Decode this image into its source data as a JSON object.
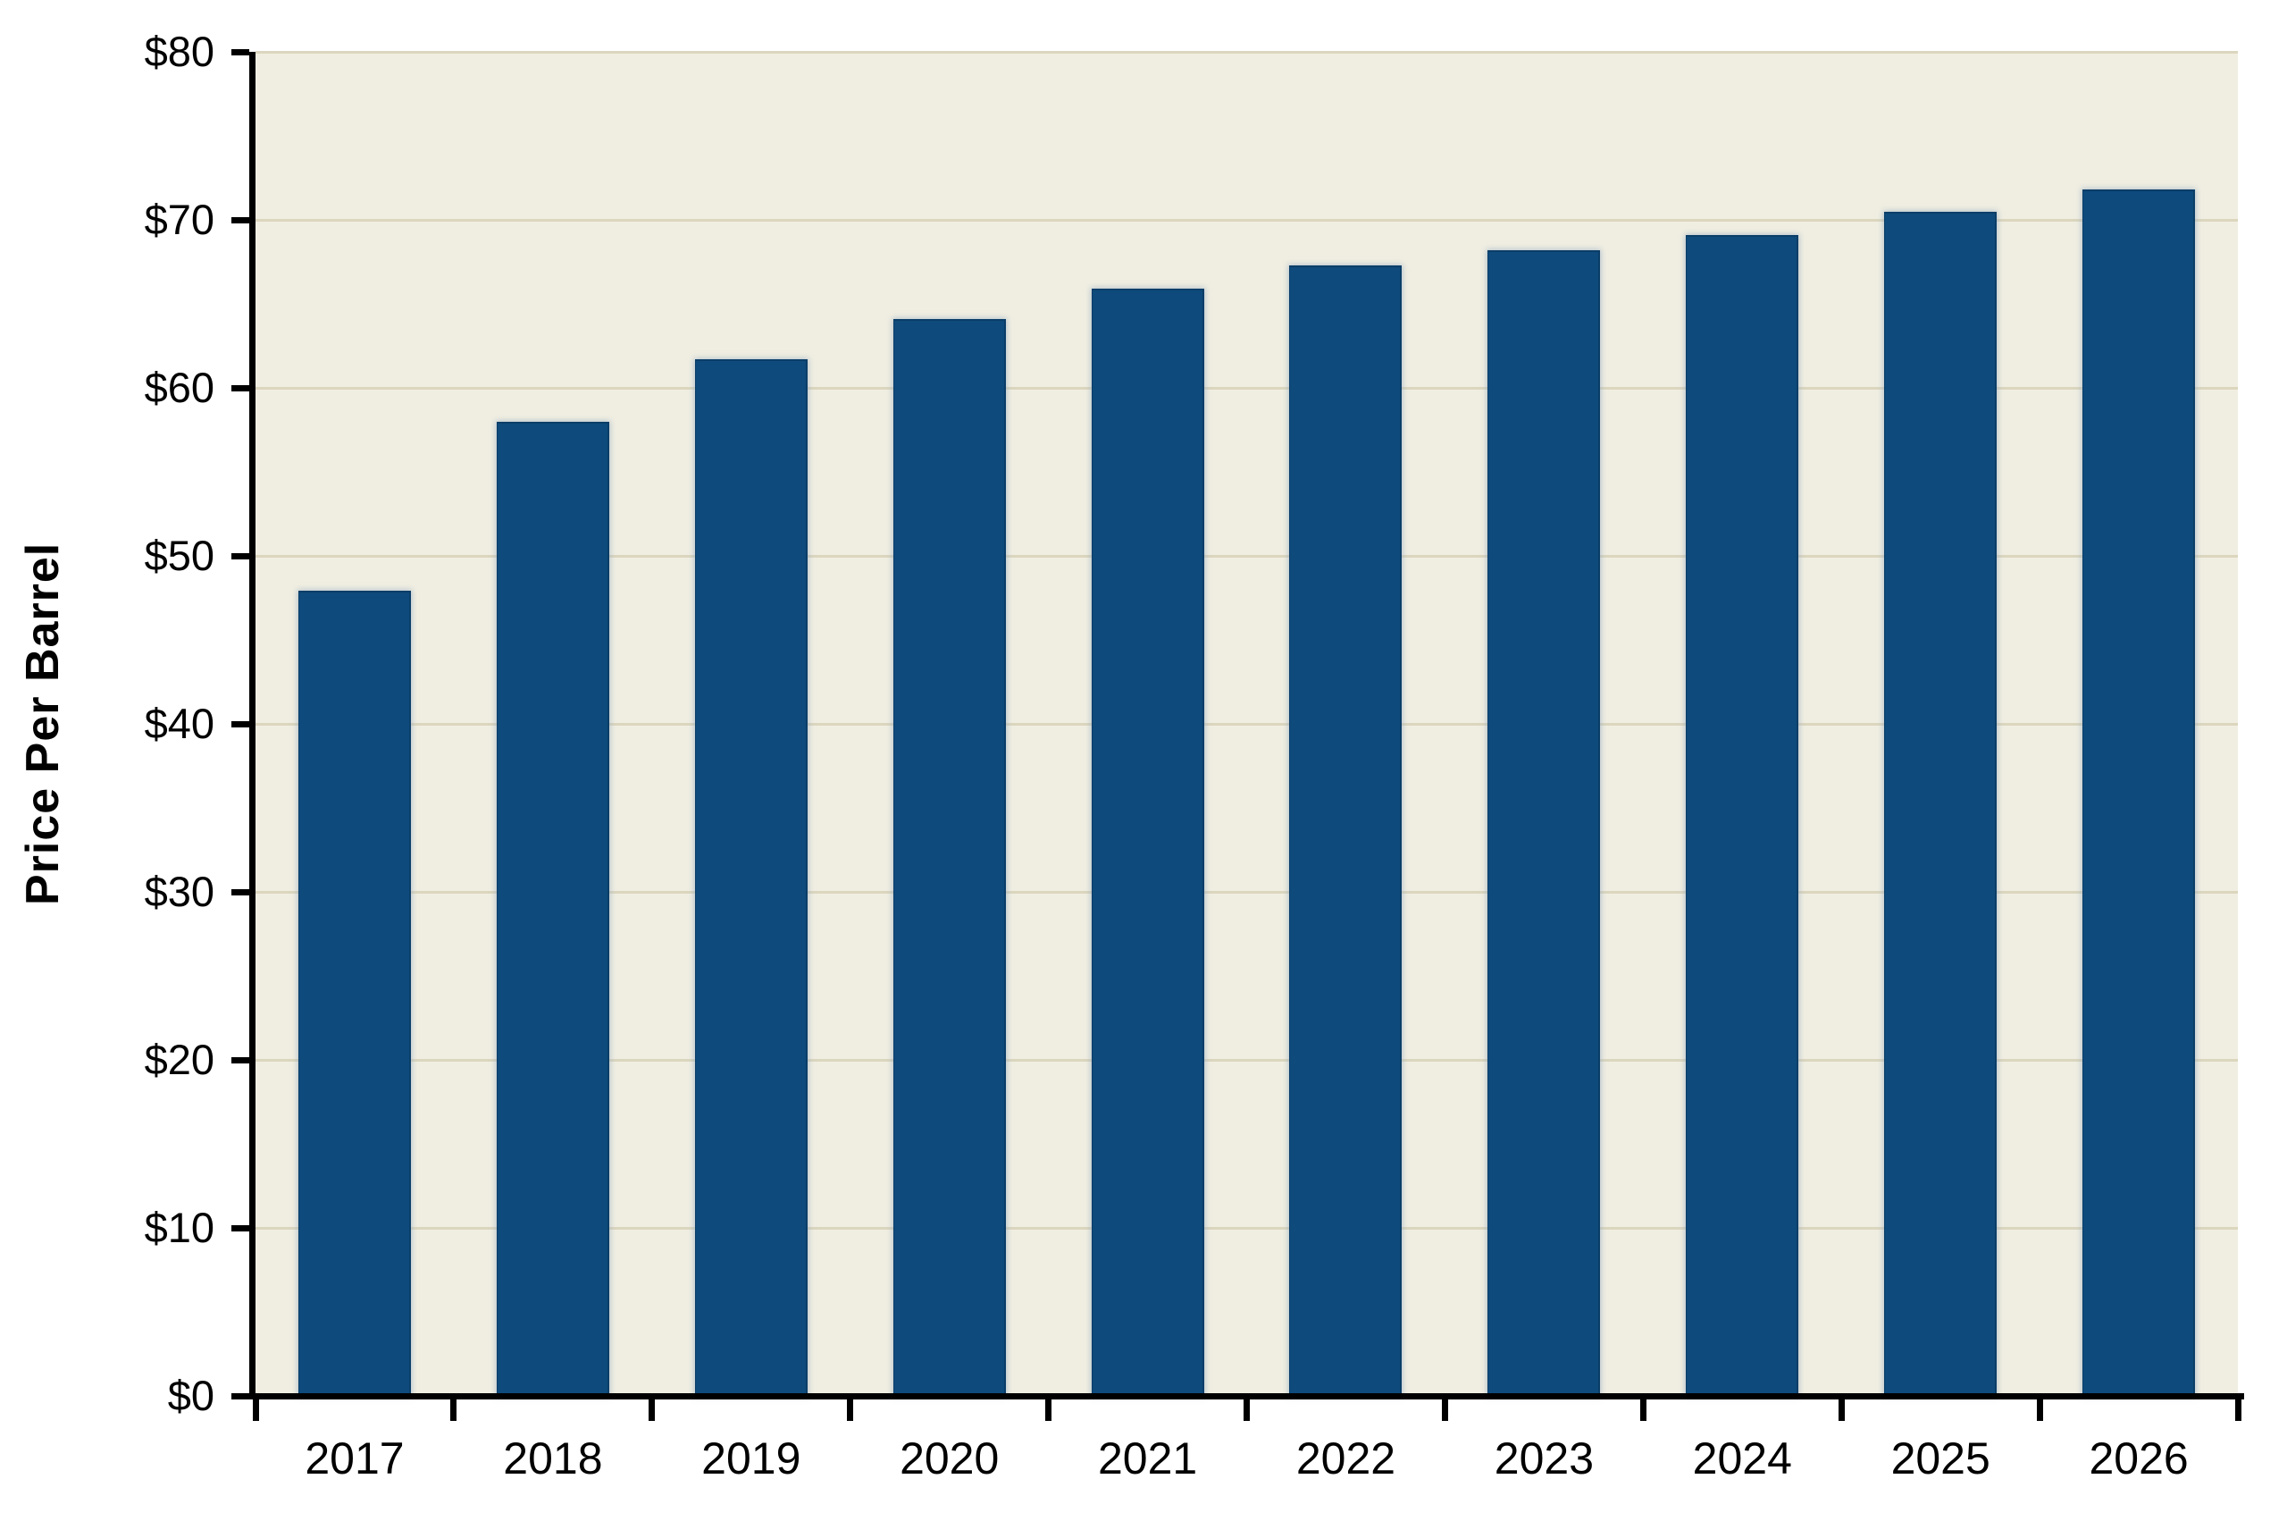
{
  "chart_data": {
    "type": "bar",
    "title": "",
    "categories": [
      "2017",
      "2018",
      "2019",
      "2020",
      "2021",
      "2022",
      "2023",
      "2024",
      "2025",
      "2026"
    ],
    "values": [
      47.9,
      58,
      61.7,
      64.1,
      65.9,
      67.3,
      68.2,
      69.1,
      70.5,
      71.8
    ],
    "series_name": "Price Per Barrel",
    "xlabel": "",
    "ylabel": "Price Per Barrel",
    "ylim": [
      0,
      80
    ],
    "ytick_interval": 10,
    "ytick_labels": [
      "$0",
      "$10",
      "$20",
      "$30",
      "$40",
      "$50",
      "$60",
      "$70",
      "$80"
    ],
    "grid": true,
    "legend": false,
    "colors": {
      "bar": "#0E4A7C",
      "bar_border": "#0B3E68",
      "plot_background": "#F0EEE1",
      "gridline": "#DBD6BE",
      "axis": "#000000",
      "text": "#000000",
      "page_background": "#FFFFFF"
    }
  }
}
